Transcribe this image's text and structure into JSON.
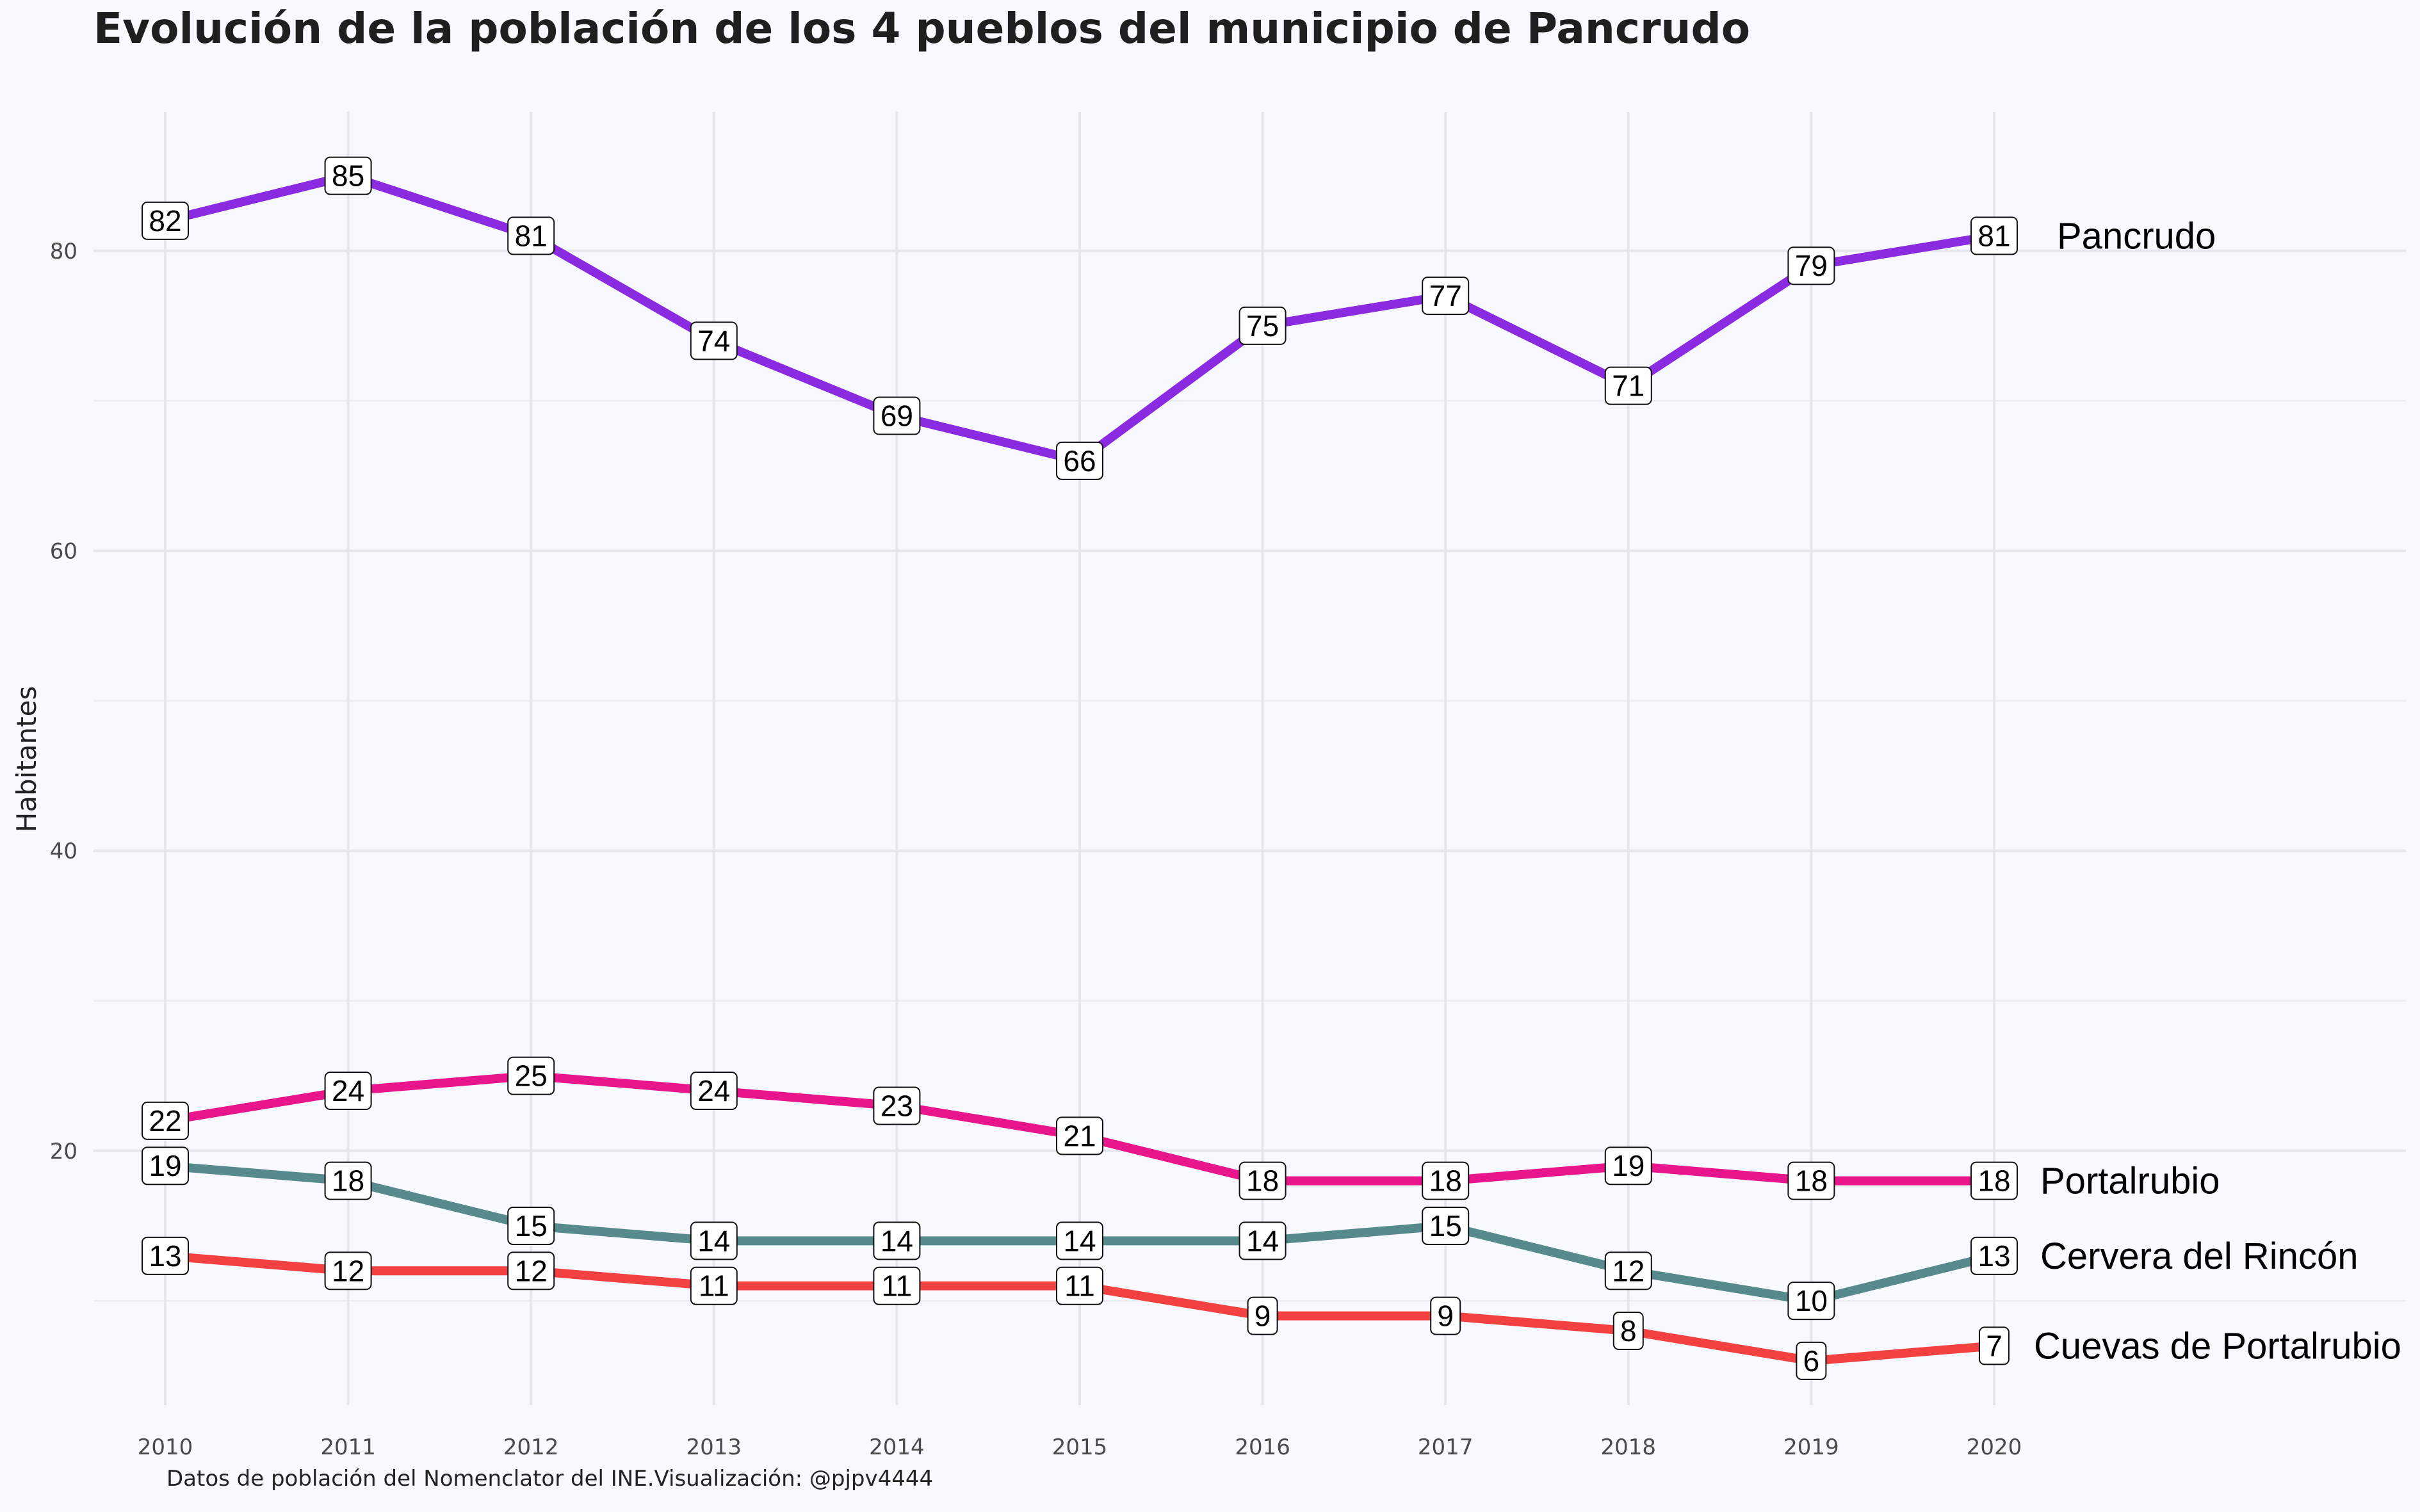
{
  "title": "Evolución de la población de los 4 pueblos del municipio de Pancrudo",
  "caption": "Datos de población del Nomenclator del INE.Visualización: @pjpv4444",
  "chart_data": {
    "type": "line",
    "title": "Evolución de la población de los 4 pueblos del municipio de Pancrudo",
    "xlabel": "",
    "ylabel": "Habitantes",
    "x": [
      2010,
      2011,
      2012,
      2013,
      2014,
      2015,
      2016,
      2017,
      2018,
      2019,
      2020
    ],
    "yticks": [
      20,
      40,
      60,
      80
    ],
    "ylim": [
      3.05,
      89.25
    ],
    "grid": true,
    "legend": "direct labels at right end of lines",
    "series": [
      {
        "name": "Pancrudo",
        "color": "#8a2be2",
        "values": [
          82,
          85,
          81,
          74,
          69,
          66,
          75,
          77,
          71,
          79,
          81
        ]
      },
      {
        "name": "Portalrubio",
        "color": "#e8158c",
        "values": [
          22,
          24,
          25,
          24,
          23,
          21,
          18,
          18,
          19,
          18,
          18
        ]
      },
      {
        "name": "Cervera del Rincón",
        "color": "#578a8c",
        "values": [
          19,
          18,
          15,
          14,
          14,
          14,
          14,
          15,
          12,
          10,
          13
        ]
      },
      {
        "name": "Cuevas de Portalrubio",
        "color": "#f34141",
        "values": [
          13,
          12,
          12,
          11,
          11,
          11,
          9,
          9,
          8,
          6,
          7
        ]
      }
    ]
  }
}
